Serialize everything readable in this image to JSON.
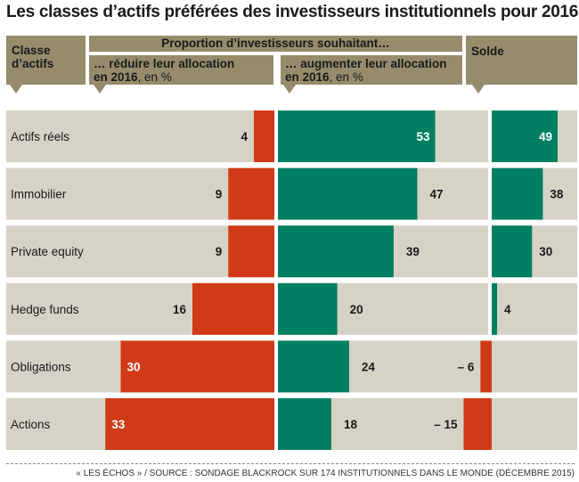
{
  "title": "Les classes d’actifs préférées des investisseurs institutionnels pour 2016",
  "header": {
    "classe": "Classe d’actifs",
    "proportion": "Proportion d’investisseurs souhaitant…",
    "reduire_line1": "… réduire leur allocation",
    "reduire_year": "en 2016",
    "reduire_unit": ", en %",
    "augmenter_line1": "… augmenter leur allocation",
    "augmenter_year": "en 2016",
    "augmenter_unit": ", en %",
    "solde": "Solde"
  },
  "colors": {
    "reduce": "#d13a16",
    "increase": "#007f62",
    "track": "#d6d2c6",
    "header": "#968c6c"
  },
  "chart_data": {
    "type": "bar",
    "categories": [
      "Actifs réels",
      "Immobilier",
      "Private equity",
      "Hedge funds",
      "Obligations",
      "Actions"
    ],
    "series": [
      {
        "name": "… réduire leur allocation en 2016, en %",
        "values": [
          4,
          9,
          9,
          16,
          30,
          33
        ]
      },
      {
        "name": "… augmenter leur allocation en 2016, en %",
        "values": [
          53,
          47,
          39,
          20,
          24,
          18
        ]
      },
      {
        "name": "Solde",
        "values": [
          49,
          38,
          30,
          4,
          -6,
          -15
        ]
      }
    ]
  },
  "source": "« LES ÉCHOS » / SOURCE : SONDAGE BLACKROCK SUR 174 INSTITUTIONNELS DANS LE MONDE (DÉCEMBRE 2015)"
}
